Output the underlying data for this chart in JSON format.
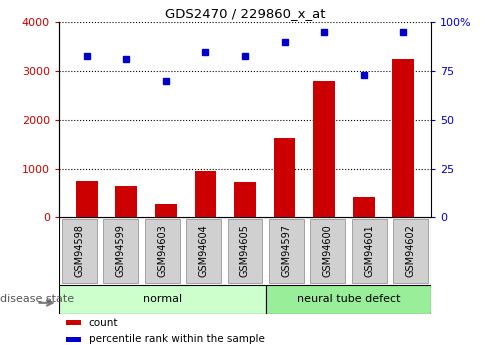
{
  "title": "GDS2470 / 229860_x_at",
  "samples": [
    "GSM94598",
    "GSM94599",
    "GSM94603",
    "GSM94604",
    "GSM94605",
    "GSM94597",
    "GSM94600",
    "GSM94601",
    "GSM94602"
  ],
  "counts": [
    750,
    650,
    275,
    950,
    725,
    1625,
    2800,
    425,
    3250
  ],
  "percentiles": [
    83,
    81,
    70,
    85,
    83,
    90,
    95,
    73,
    95
  ],
  "groups": [
    {
      "label": "normal",
      "start": 0,
      "end": 5,
      "color": "#ccffcc"
    },
    {
      "label": "neural tube defect",
      "start": 5,
      "end": 9,
      "color": "#99ee99"
    }
  ],
  "bar_color": "#cc0000",
  "dot_color": "#0000cc",
  "ylim_left": [
    0,
    4000
  ],
  "ylim_right": [
    0,
    100
  ],
  "yticks_left": [
    0,
    1000,
    2000,
    3000,
    4000
  ],
  "yticks_right": [
    0,
    25,
    50,
    75,
    100
  ],
  "background_color": "#ffffff",
  "tick_bg_color": "#d0d0d0",
  "legend_items": [
    {
      "label": "count",
      "color": "#cc0000"
    },
    {
      "label": "percentile rank within the sample",
      "color": "#0000cc"
    }
  ],
  "disease_state_label": "disease state",
  "left_ylabel_color": "#cc0000",
  "right_ylabel_color": "#0000cc"
}
